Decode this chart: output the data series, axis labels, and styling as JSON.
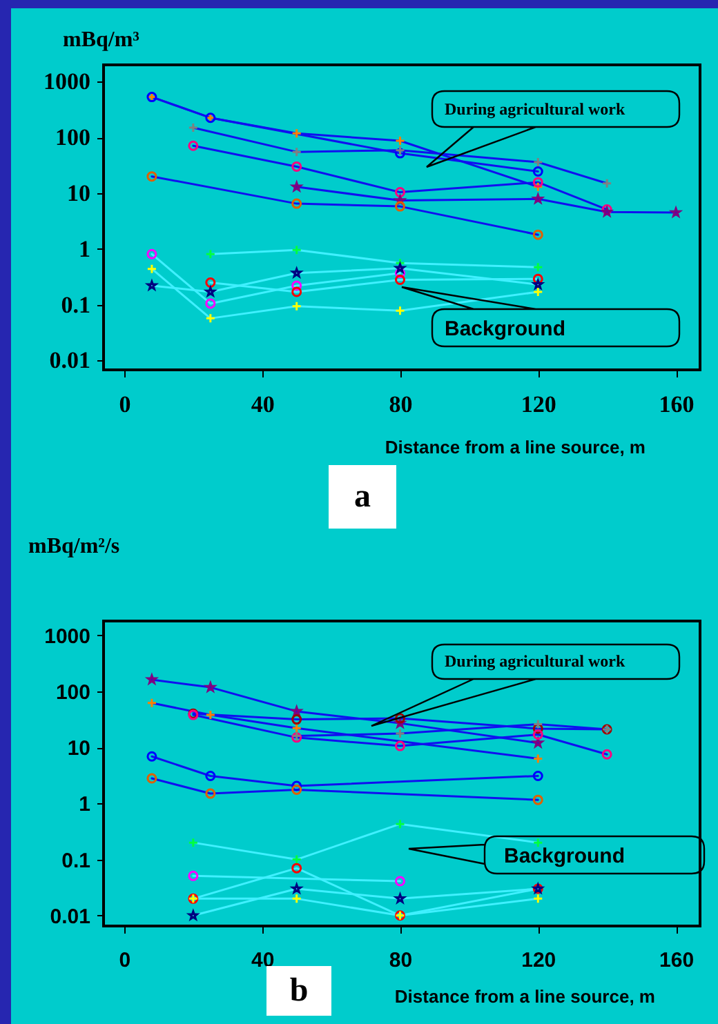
{
  "chart_data": [
    {
      "type": "line",
      "xlabel": "Distance from a line source, m",
      "ylabel": "mBq/m³",
      "log": "y",
      "xlim": [
        -6,
        167
      ],
      "xticks": [
        0,
        40,
        80,
        120,
        160
      ],
      "ylim": [
        0.0068,
        2000
      ],
      "yticks": [
        0.01,
        0.1,
        1,
        10,
        100,
        1000
      ],
      "annotations": [
        "During agricultural work",
        "Background",
        "a"
      ],
      "series": [
        {
          "color": "#1010f0",
          "marker": "cross",
          "x": [
            8,
            25,
            50,
            80,
            120
          ],
          "values": [
            530,
            225,
            118,
            87,
            13
          ],
          "colors": [
            "#ff8000",
            "#ff8000",
            "#ff8000",
            "#ff8000",
            "#ff8000"
          ]
        },
        {
          "color": "#1010f0",
          "marker": "circle",
          "x": [
            8,
            25,
            80,
            120
          ],
          "values": [
            530,
            225,
            52,
            24.5
          ],
          "colors": [
            "#0000ff",
            "#0000ff",
            "#0000ff",
            "#0000ff"
          ]
        },
        {
          "color": "#1010f0",
          "marker": "cross",
          "x": [
            20,
            50,
            80,
            120,
            140
          ],
          "values": [
            150,
            55,
            59,
            36,
            15
          ],
          "colors": [
            "#808080",
            "#808080",
            "#808080",
            "#808080",
            "#808080"
          ]
        },
        {
          "color": "#1010f0",
          "marker": "circle",
          "x": [
            20,
            50,
            80,
            120,
            140
          ],
          "values": [
            71,
            30,
            10.4,
            15.7,
            5.1
          ],
          "colors": [
            "#ff0080",
            "#ff0080",
            "#ff0080",
            "#ff0080",
            "#ff0080"
          ]
        },
        {
          "color": "#1010f0",
          "marker": "star",
          "x": [
            50,
            80,
            120,
            140,
            160
          ],
          "values": [
            13,
            7.4,
            7.9,
            4.6,
            4.5
          ],
          "colors": [
            "#800080",
            "#800080",
            "#800080",
            "#800080",
            "#800080"
          ]
        },
        {
          "color": "#1010f0",
          "marker": "circle",
          "x": [
            8,
            50,
            80,
            120
          ],
          "values": [
            20,
            6.5,
            5.8,
            1.8
          ],
          "colors": [
            "#e06000",
            "#e06000",
            "#e06000",
            "#e06000"
          ]
        },
        {
          "color": "#40f0ff",
          "marker": "circle",
          "x": [
            8,
            25,
            50,
            80
          ],
          "values": [
            0.81,
            0.105,
            0.22,
            0.37
          ],
          "colors": [
            "#ff00ff",
            "#ff00ff",
            "#ff00ff",
            "#ff00ff"
          ]
        },
        {
          "color": "#40f0ff",
          "marker": "cross",
          "x": [
            8,
            25,
            50,
            80,
            120
          ],
          "values": [
            0.44,
            0.057,
            0.094,
            0.078,
            0.17
          ],
          "colors": [
            "#ffff00",
            "#ffff00",
            "#ffff00",
            "#ffff00",
            "#ffff00"
          ]
        },
        {
          "color": "#40f0ff",
          "marker": "cross",
          "x": [
            25,
            50,
            80,
            120
          ],
          "values": [
            0.81,
            0.96,
            0.56,
            0.47
          ],
          "colors": [
            "#00ff40",
            "#00ff40",
            "#00ff40",
            "#00ff40"
          ]
        },
        {
          "color": "#40f0ff",
          "marker": "circle",
          "x": [
            25,
            50,
            80,
            120
          ],
          "values": [
            0.25,
            0.17,
            0.28,
            0.29
          ],
          "colors": [
            "#ff0000",
            "#ff0000",
            "#ff0000",
            "#ff0000"
          ]
        },
        {
          "color": "#40f0ff",
          "marker": "star",
          "x": [
            8,
            25,
            50,
            80,
            120
          ],
          "values": [
            0.22,
            0.17,
            0.37,
            0.45,
            0.23
          ],
          "colors": [
            "#000080",
            "#000080",
            "#000080",
            "#000080",
            "#000080"
          ]
        }
      ]
    },
    {
      "type": "line",
      "xlabel": "Distance from a line source, m",
      "ylabel": "mBq/m²/s",
      "log": "y",
      "xlim": [
        -6,
        167
      ],
      "xticks": [
        0,
        40,
        80,
        120,
        160
      ],
      "ylim": [
        0.0065,
        1800
      ],
      "yticks": [
        0.01,
        0.1,
        1,
        10,
        100,
        1000
      ],
      "annotations": [
        "During agricultural work",
        "Background",
        "b"
      ],
      "series": [
        {
          "color": "#1010f0",
          "marker": "star",
          "x": [
            8,
            25,
            50,
            80,
            120
          ],
          "values": [
            162,
            118,
            44,
            27,
            12
          ],
          "colors": [
            "#800080",
            "#800080",
            "#800080",
            "#800080",
            "#800080"
          ]
        },
        {
          "color": "#1010f0",
          "marker": "cross",
          "x": [
            8,
            25,
            50,
            120
          ],
          "values": [
            62,
            38,
            22,
            6.3
          ],
          "colors": [
            "#ff8000",
            "#ff8000",
            "#ff8000",
            "#ff8000"
          ]
        },
        {
          "color": "#1010f0",
          "marker": "circle",
          "x": [
            20,
            50,
            80,
            120,
            140
          ],
          "values": [
            40,
            31.6,
            33,
            21.6,
            21
          ],
          "colors": [
            "#a00000",
            "#a00000",
            "#a00000",
            "#a00000",
            "#a00000"
          ]
        },
        {
          "color": "#1010f0",
          "marker": "circle",
          "x": [
            20,
            50,
            80,
            120,
            140
          ],
          "values": [
            38,
            15,
            10.6,
            17,
            7.5
          ],
          "colors": [
            "#ff0080",
            "#ff0080",
            "#ff0080",
            "#ff0080",
            "#ff0080"
          ]
        },
        {
          "color": "#1010f0",
          "marker": "cross",
          "x": [
            50,
            80,
            120,
            140
          ],
          "values": [
            16,
            17.7,
            26,
            21
          ],
          "colors": [
            "#808080",
            "#808080",
            "#808080",
            "#808080"
          ]
        },
        {
          "color": "#1010f0",
          "marker": "circle",
          "x": [
            8,
            25,
            50,
            120
          ],
          "values": [
            6.9,
            3.1,
            2.05,
            3.1
          ],
          "colors": [
            "#0000ff",
            "#0000ff",
            "#0000ff",
            "#0000ff"
          ]
        },
        {
          "color": "#1010f0",
          "marker": "circle",
          "x": [
            8,
            25,
            50,
            120
          ],
          "values": [
            2.8,
            1.5,
            1.76,
            1.16
          ],
          "colors": [
            "#e06000",
            "#e06000",
            "#e06000",
            "#e06000"
          ]
        },
        {
          "color": "#40f0ff",
          "marker": "cross",
          "x": [
            20,
            50,
            80,
            120
          ],
          "values": [
            0.2,
            0.1,
            0.43,
            0.2
          ],
          "colors": [
            "#00ff40",
            "#00ff40",
            "#00ff40",
            "#00ff40"
          ]
        },
        {
          "color": "#40f0ff",
          "marker": "circle",
          "x": [
            20,
            80
          ],
          "values": [
            0.051,
            0.041
          ],
          "colors": [
            "#ff00ff",
            "#ff00ff"
          ]
        },
        {
          "color": "#40f0ff",
          "marker": "circle",
          "x": [
            20,
            50,
            80,
            120
          ],
          "values": [
            0.02,
            0.07,
            0.01,
            0.03
          ],
          "colors": [
            "#ff0000",
            "#ff0000",
            "#ff0000",
            "#ff0000"
          ]
        },
        {
          "color": "#40f0ff",
          "marker": "star",
          "x": [
            20,
            50,
            80,
            120
          ],
          "values": [
            0.01,
            0.03,
            0.02,
            0.03
          ],
          "colors": [
            "#000080",
            "#000080",
            "#000080",
            "#000080"
          ]
        },
        {
          "color": "#40f0ff",
          "marker": "cross",
          "x": [
            20,
            50,
            80,
            120
          ],
          "values": [
            0.02,
            0.02,
            0.01,
            0.02
          ],
          "colors": [
            "#ffff00",
            "#ffff00",
            "#ffff00",
            "#ffff00"
          ]
        }
      ]
    }
  ]
}
